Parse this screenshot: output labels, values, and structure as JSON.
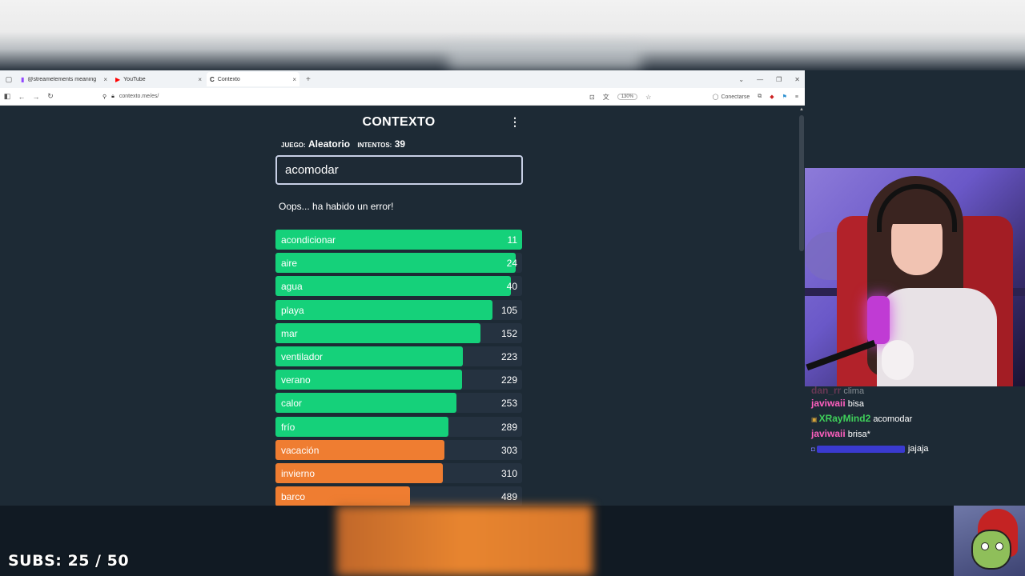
{
  "browser": {
    "tabs": [
      {
        "label": "@streamelements meaning",
        "icon": "twitch-icon"
      },
      {
        "label": "YouTube",
        "icon": "youtube-icon"
      },
      {
        "label": "Contexto",
        "icon": "contexto-icon",
        "active": true
      }
    ],
    "url": "contexto.me/es/",
    "zoom": "130%",
    "connect_label": "Conectarse"
  },
  "game": {
    "title": "CONTEXTO",
    "game_label": "JUEGO:",
    "game_value": "Aleatorio",
    "attempts_label": "INTENTOS:",
    "attempts_value": "39",
    "input_value": "acomodar",
    "error_message": "Oops... ha habido un error!",
    "guesses": [
      {
        "word": "acondicionar",
        "rank": 11,
        "color": "#15d17a",
        "fill": 1.0
      },
      {
        "word": "aire",
        "rank": 24,
        "color": "#15d17a",
        "fill": 0.975
      },
      {
        "word": "agua",
        "rank": 40,
        "color": "#15d17a",
        "fill": 0.955
      },
      {
        "word": "playa",
        "rank": 105,
        "color": "#15d17a",
        "fill": 0.88
      },
      {
        "word": "mar",
        "rank": 152,
        "color": "#15d17a",
        "fill": 0.83
      },
      {
        "word": "ventilador",
        "rank": 223,
        "color": "#15d17a",
        "fill": 0.76
      },
      {
        "word": "verano",
        "rank": 229,
        "color": "#15d17a",
        "fill": 0.755
      },
      {
        "word": "calor",
        "rank": 253,
        "color": "#15d17a",
        "fill": 0.735
      },
      {
        "word": "frío",
        "rank": 289,
        "color": "#15d17a",
        "fill": 0.7
      },
      {
        "word": "vacación",
        "rank": 303,
        "color": "#ef7d31",
        "fill": 0.685
      },
      {
        "word": "invierno",
        "rank": 310,
        "color": "#ef7d31",
        "fill": 0.68
      },
      {
        "word": "barco",
        "rank": 489,
        "color": "#ef7d31",
        "fill": 0.545
      }
    ]
  },
  "chat": [
    {
      "user": "dan_rr",
      "message": "clima",
      "color": "#c14a7a",
      "faded": true
    },
    {
      "user": "javiwaii",
      "message": "bisa",
      "color": "#ff5fbf"
    },
    {
      "user": "XRayMind2",
      "message": "acomodar",
      "color": "#3fd05a",
      "badge": true
    },
    {
      "user": "javiwaii",
      "message": "brisa*",
      "color": "#ff5fbf"
    },
    {
      "user": "",
      "message": "jajaja",
      "color": "#3a3ad0",
      "badge": true,
      "blurred": true
    }
  ],
  "overlay": {
    "subs": "SUBS: 25 / 50"
  }
}
